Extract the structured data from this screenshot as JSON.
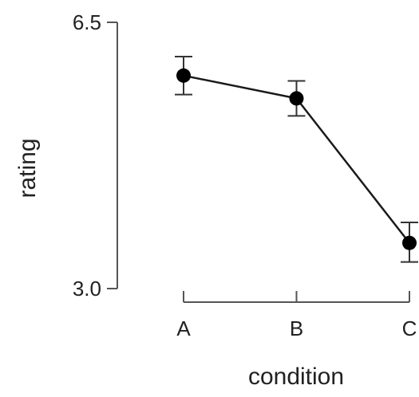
{
  "chart_data": {
    "type": "line",
    "categories": [
      "A",
      "B",
      "C"
    ],
    "series": [
      {
        "values": [
          5.8,
          5.5,
          3.6
        ],
        "error_low": [
          5.55,
          5.27,
          3.35
        ],
        "error_high": [
          6.05,
          5.73,
          3.87
        ]
      }
    ],
    "xlabel": "condition",
    "ylabel": "rating",
    "ylim": [
      3.0,
      6.5
    ],
    "yticks": [
      "3.0",
      "6.5"
    ],
    "grid": false,
    "legend": "none",
    "point_color": "#000000",
    "line_color": "#1a1a1a"
  }
}
